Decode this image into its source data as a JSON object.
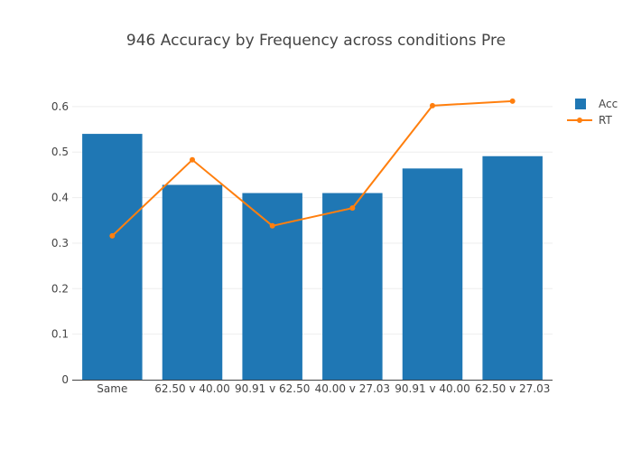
{
  "chart_data": {
    "type": "bar",
    "title": "946 Accuracy by Frequency across conditions Pre",
    "categories": [
      "Same",
      "62.50 v 40.00",
      "90.91 v 62.50",
      "40.00 v 27.03",
      "90.91 v 40.00",
      "62.50 v 27.03"
    ],
    "series": [
      {
        "name": "Acc",
        "type": "bar",
        "color": "#1f77b4",
        "values": [
          0.54,
          0.428,
          0.41,
          0.41,
          0.464,
          0.491
        ]
      },
      {
        "name": "RT",
        "type": "line",
        "color": "#ff7f0e",
        "values": [
          0.316,
          0.483,
          0.338,
          0.377,
          0.602,
          0.612
        ]
      }
    ],
    "yticks": [
      "0",
      "0.1",
      "0.2",
      "0.3",
      "0.4",
      "0.5",
      "0.6"
    ],
    "ylim": [
      0,
      0.6
    ],
    "grid": true,
    "legend_position": "top-right"
  }
}
